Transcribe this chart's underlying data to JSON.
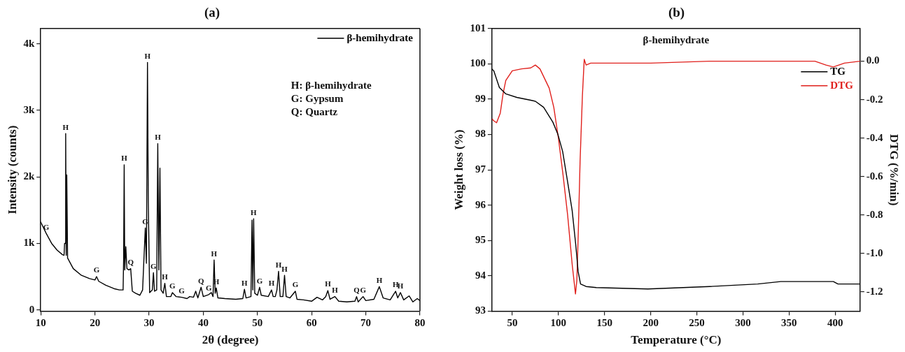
{
  "chart_data": [
    {
      "type": "line",
      "title": "(a)",
      "xlabel": "2θ (degree)",
      "ylabel": "Intensity (counts)",
      "legend": "top right",
      "xlim": [
        10,
        80
      ],
      "xticks": [
        10,
        20,
        30,
        40,
        50,
        60,
        70,
        80
      ],
      "ylim": [
        -20,
        4230
      ],
      "yticks": [
        0,
        {
          "value": 1000,
          "label": "1k"
        },
        {
          "value": 2000,
          "label": "2k"
        },
        {
          "value": 3000,
          "label": "3k"
        },
        {
          "value": 4000,
          "label": "4k"
        }
      ],
      "x": [
        10,
        11,
        12,
        13,
        14,
        14.3,
        14.4,
        14.5,
        14.6,
        14.7,
        14.8,
        14.95,
        16,
        17.5,
        19,
        20,
        20.3,
        20.7,
        22,
        23.5,
        24.5,
        25.2,
        25.3,
        25.4,
        25.5,
        25.7,
        25.9,
        26.3,
        26.6,
        26.9,
        27.5,
        28.3,
        28.8,
        29.0,
        29.3,
        29.5,
        29.7,
        29.85,
        30.1,
        30.6,
        30.8,
        31.0,
        31.4,
        31.6,
        31.8,
        32.0,
        32.2,
        32.6,
        32.9,
        33.2,
        34.0,
        34.3,
        35,
        36,
        37,
        37.5,
        38.2,
        38.6,
        39,
        39.6,
        40,
        41,
        41.5,
        41.8,
        42.0,
        42.2,
        42.4,
        42.7,
        44,
        46,
        47.3,
        47.6,
        47.9,
        48.8,
        49.0,
        49.15,
        49.3,
        49.5,
        50,
        50.4,
        50.7,
        52,
        52.6,
        52.9,
        53.3,
        53.6,
        53.9,
        54.2,
        54.7,
        55.0,
        55.3,
        56,
        57,
        57.3,
        58.5,
        60,
        61,
        62,
        62.6,
        63,
        63.4,
        64.3,
        65,
        66.5,
        68,
        68.3,
        68.6,
        69.5,
        70,
        71.5,
        72.5,
        73.2,
        74.5,
        75.5,
        75.9,
        76.4,
        77,
        78,
        78.7,
        79.5,
        80
      ],
      "series": [
        {
          "name": "β-hemihydrate",
          "color": "#000000",
          "values": [
            1320,
            1150,
            1000,
            900,
            830,
            820,
            1000,
            1000,
            2650,
            820,
            2030,
            780,
            620,
            520,
            470,
            450,
            500,
            430,
            370,
            320,
            300,
            300,
            780,
            2180,
            600,
            950,
            620,
            600,
            620,
            280,
            250,
            220,
            300,
            680,
            1230,
            700,
            3720,
            1620,
            260,
            300,
            560,
            280,
            300,
            2500,
            600,
            2130,
            300,
            250,
            400,
            200,
            200,
            260,
            200,
            190,
            170,
            200,
            190,
            280,
            180,
            340,
            200,
            230,
            260,
            200,
            750,
            250,
            330,
            180,
            170,
            160,
            170,
            310,
            180,
            200,
            1350,
            300,
            1370,
            250,
            220,
            340,
            220,
            200,
            300,
            200,
            200,
            300,
            580,
            200,
            200,
            520,
            200,
            180,
            280,
            160,
            150,
            130,
            190,
            150,
            200,
            290,
            160,
            200,
            130,
            120,
            130,
            200,
            120,
            200,
            140,
            160,
            350,
            180,
            150,
            280,
            180,
            260,
            150,
            210,
            120,
            170,
            140
          ]
        }
      ],
      "annotations": [
        "H: β-hemihydrate",
        "G: Gypsum",
        "Q: Quartz",
        {
          "text": "G",
          "x": 11,
          "y": 1150
        },
        {
          "text": "H",
          "x": 14.6,
          "y": 2650
        },
        {
          "text": "G",
          "x": 20.3,
          "y": 500
        },
        {
          "text": "H",
          "x": 25.4,
          "y": 2180
        },
        {
          "text": "Q",
          "x": 26.6,
          "y": 620
        },
        {
          "text": "G",
          "x": 29.3,
          "y": 1230
        },
        {
          "text": "H",
          "x": 29.7,
          "y": 3720
        },
        {
          "text": "G",
          "x": 30.8,
          "y": 560
        },
        {
          "text": "H",
          "x": 31.6,
          "y": 2500
        },
        {
          "text": "H",
          "x": 32.9,
          "y": 400
        },
        {
          "text": "G",
          "x": 34.3,
          "y": 260
        },
        {
          "text": "G",
          "x": 36,
          "y": 190
        },
        {
          "text": "Q",
          "x": 39.6,
          "y": 340
        },
        {
          "text": "G",
          "x": 41,
          "y": 230
        },
        {
          "text": "H",
          "x": 42.0,
          "y": 750
        },
        {
          "text": "H",
          "x": 42.4,
          "y": 330
        },
        {
          "text": "H",
          "x": 47.6,
          "y": 310
        },
        {
          "text": "H",
          "x": 49.3,
          "y": 1370
        },
        {
          "text": "G",
          "x": 50.4,
          "y": 340
        },
        {
          "text": "H",
          "x": 52.6,
          "y": 300
        },
        {
          "text": "H",
          "x": 53.9,
          "y": 580
        },
        {
          "text": "H",
          "x": 55.0,
          "y": 520
        },
        {
          "text": "G",
          "x": 57,
          "y": 280
        },
        {
          "text": "H",
          "x": 63,
          "y": 290
        },
        {
          "text": "H",
          "x": 64.3,
          "y": 200
        },
        {
          "text": "Q",
          "x": 68.3,
          "y": 200
        },
        {
          "text": "G",
          "x": 69.5,
          "y": 200
        },
        {
          "text": "H",
          "x": 72.5,
          "y": 350
        },
        {
          "text": "H",
          "x": 75.5,
          "y": 280
        },
        {
          "text": "H",
          "x": 76.4,
          "y": 260
        }
      ]
    },
    {
      "type": "line",
      "title": "(b)",
      "xlabel": "Temperature (°C)",
      "ylabel": "Weight loss (%)",
      "y2label": "DTG (%/min)",
      "legend": "top right",
      "xlim": [
        28,
        427
      ],
      "xticks": [
        50,
        100,
        150,
        200,
        250,
        300,
        350,
        400
      ],
      "ylim": [
        93,
        101
      ],
      "yticks": [
        93,
        94,
        95,
        96,
        97,
        98,
        99,
        100,
        101
      ],
      "y2lim": [
        -1.3,
        0.17
      ],
      "y2ticks": [
        {
          "value": 0,
          "label": "0.0"
        },
        -0.2,
        -0.4,
        -0.6,
        -0.8,
        {
          "value": -1,
          "label": "-1.0"
        },
        -1.2
      ],
      "series": [
        {
          "name": "TG",
          "color": "#000000",
          "x": [
            28,
            30,
            36,
            43,
            55,
            70,
            75,
            84,
            94,
            99.5,
            104.6,
            109.8,
            114.9,
            118.8,
            121.4,
            124,
            130,
            141,
            197,
            264,
            316,
            341,
            398,
            403,
            427
          ],
          "values": [
            99.85,
            99.8,
            99.33,
            99.15,
            99.05,
            98.97,
            98.94,
            98.77,
            98.35,
            98.0,
            97.52,
            96.69,
            95.85,
            94.88,
            94.12,
            93.77,
            93.7,
            93.67,
            93.63,
            93.7,
            93.77,
            93.84,
            93.84,
            93.77,
            93.77
          ]
        },
        {
          "name": "DTG",
          "color": "#e0201c",
          "axis": "y2",
          "x": [
            28,
            30,
            33,
            37,
            40,
            43,
            50,
            60,
            70,
            75,
            80,
            90,
            95,
            100,
            105,
            110,
            115,
            118.5,
            120,
            121.5,
            123.5,
            126,
            128,
            130,
            135,
            150,
            200,
            264,
            378,
            390,
            398,
            410,
            427
          ],
          "values": [
            -0.3,
            -0.31,
            -0.32,
            -0.27,
            -0.17,
            -0.1,
            -0.05,
            -0.04,
            -0.035,
            -0.02,
            -0.04,
            -0.14,
            -0.24,
            -0.4,
            -0.59,
            -0.8,
            -1.06,
            -1.21,
            -1.14,
            -0.9,
            -0.52,
            -0.18,
            0.01,
            -0.02,
            -0.01,
            -0.01,
            -0.01,
            0,
            0,
            -0.02,
            -0.03,
            -0.01,
            0
          ]
        }
      ],
      "annotations": [
        "β-hemihydrate"
      ]
    }
  ]
}
